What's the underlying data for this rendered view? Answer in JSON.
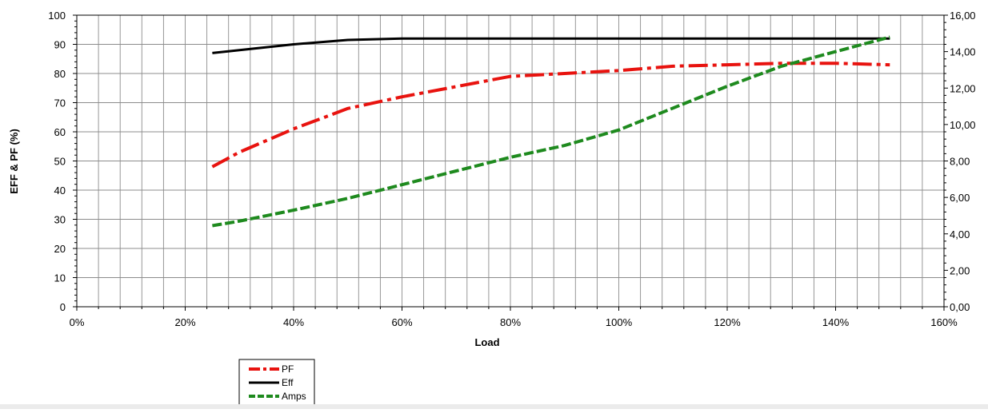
{
  "chart_data": {
    "type": "line",
    "title": "",
    "xlabel": "Load",
    "ylabel": "EFF & PF (%)",
    "y2label": "",
    "x_ticks": [
      "0%",
      "20%",
      "40%",
      "60%",
      "80%",
      "100%",
      "120%",
      "140%",
      "160%"
    ],
    "y_ticks": [
      "0",
      "10",
      "20",
      "30",
      "40",
      "50",
      "60",
      "70",
      "80",
      "90",
      "100"
    ],
    "y2_ticks": [
      "0,00",
      "2,00",
      "4,00",
      "6,00",
      "8,00",
      "10,00",
      "12,00",
      "14,00",
      "16,00"
    ],
    "xlim": [
      0,
      160
    ],
    "ylim": [
      0,
      100
    ],
    "y2lim": [
      0,
      16
    ],
    "grid": true,
    "legend_position": "below-left",
    "series": [
      {
        "name": "PF",
        "axis": "left",
        "color": "#e8130f",
        "style": "dash-dot",
        "x": [
          25,
          30,
          40,
          50,
          60,
          70,
          80,
          90,
          100,
          110,
          120,
          130,
          140,
          150
        ],
        "y": [
          48,
          53,
          61,
          68,
          72,
          75.5,
          79,
          80,
          81,
          82.5,
          83,
          83.5,
          83.5,
          83
        ]
      },
      {
        "name": "Eff",
        "axis": "left",
        "color": "#000000",
        "style": "solid",
        "x": [
          25,
          30,
          40,
          50,
          60,
          70,
          80,
          90,
          100,
          110,
          120,
          130,
          140,
          150
        ],
        "y": [
          87,
          88,
          90,
          91.5,
          92,
          92,
          92,
          92,
          92,
          92,
          92,
          92,
          92,
          92
        ]
      },
      {
        "name": "Amps",
        "axis": "right",
        "color": "#1e8a1e",
        "style": "dashed",
        "x": [
          25,
          30,
          40,
          50,
          60,
          70,
          80,
          90,
          100,
          110,
          120,
          130,
          140,
          150
        ],
        "y": [
          4.45,
          4.7,
          5.3,
          5.95,
          6.7,
          7.45,
          8.2,
          8.85,
          9.7,
          10.9,
          12.1,
          13.2,
          14,
          14.8
        ]
      }
    ]
  }
}
